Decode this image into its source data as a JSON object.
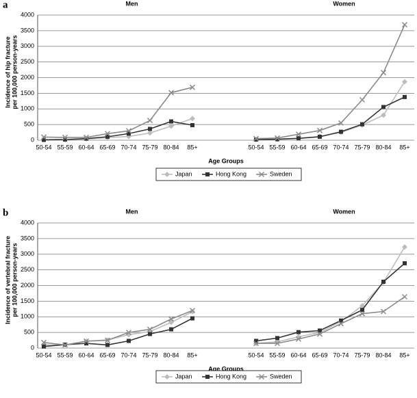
{
  "chart_data": [
    {
      "type": "line",
      "panel_label": "a",
      "groups": [
        "Men",
        "Women"
      ],
      "ylabel": [
        "Incidence of hip fracture",
        "per 100,000 person-years"
      ],
      "xlabel": "Age Groups",
      "categories": [
        "50-54",
        "55-59",
        "60-64",
        "65-69",
        "70-74",
        "75-79",
        "80-84",
        "85+",
        null,
        null,
        "50-54",
        "55-59",
        "60-64",
        "65-69",
        "70-74",
        "75-79",
        "80-84",
        "85+"
      ],
      "ylim": [
        0,
        4000
      ],
      "yticks": [
        0,
        500,
        1000,
        1500,
        2000,
        2500,
        3000,
        3500,
        4000
      ],
      "grid": true,
      "legend": "bottom",
      "series": [
        {
          "name": "Japan",
          "color": "#bdbdbd",
          "marker": "diamond",
          "values": [
            20,
            20,
            40,
            80,
            120,
            230,
            450,
            690,
            null,
            null,
            20,
            30,
            60,
            120,
            250,
            480,
            800,
            1870
          ]
        },
        {
          "name": "Hong Kong",
          "color": "#333333",
          "marker": "square",
          "values": [
            10,
            20,
            50,
            110,
            210,
            360,
            600,
            480,
            null,
            null,
            20,
            30,
            60,
            110,
            270,
            510,
            1060,
            1380
          ]
        },
        {
          "name": "Sweden",
          "color": "#8a8a8a",
          "marker": "x",
          "values": [
            100,
            90,
            90,
            210,
            300,
            630,
            1520,
            1690,
            null,
            null,
            50,
            70,
            190,
            310,
            550,
            1290,
            2160,
            3690
          ]
        }
      ]
    },
    {
      "type": "line",
      "panel_label": "b",
      "groups": [
        "Men",
        "Women"
      ],
      "ylabel": [
        "Incidence of vertebral fracture",
        "per 100,000 person-years"
      ],
      "xlabel": "Age Groups",
      "categories": [
        "50-54",
        "55-59",
        "60-64",
        "65-69",
        "70-74",
        "75-79",
        "80-84",
        "85+",
        null,
        null,
        "50-54",
        "55-59",
        "60-64",
        "65-69",
        "70-74",
        "75-79",
        "80-84",
        "85+"
      ],
      "ylim": [
        0,
        4000
      ],
      "yticks": [
        0,
        500,
        1000,
        1500,
        2000,
        2500,
        3000,
        3500,
        4000
      ],
      "grid": true,
      "legend": "bottom",
      "series": [
        {
          "name": "Japan",
          "color": "#bdbdbd",
          "marker": "diamond",
          "values": [
            100,
            100,
            220,
            260,
            430,
            530,
            820,
            1160,
            null,
            null,
            150,
            200,
            360,
            500,
            850,
            1350,
            2100,
            3230
          ]
        },
        {
          "name": "Hong Kong",
          "color": "#333333",
          "marker": "square",
          "values": [
            50,
            110,
            150,
            100,
            230,
            450,
            600,
            950,
            null,
            null,
            230,
            320,
            510,
            560,
            880,
            1220,
            2120,
            2710
          ]
        },
        {
          "name": "Sweden",
          "color": "#8a8a8a",
          "marker": "x",
          "values": [
            180,
            100,
            220,
            250,
            500,
            600,
            930,
            1200,
            null,
            null,
            150,
            150,
            290,
            450,
            780,
            1100,
            1170,
            1640
          ]
        }
      ]
    }
  ]
}
